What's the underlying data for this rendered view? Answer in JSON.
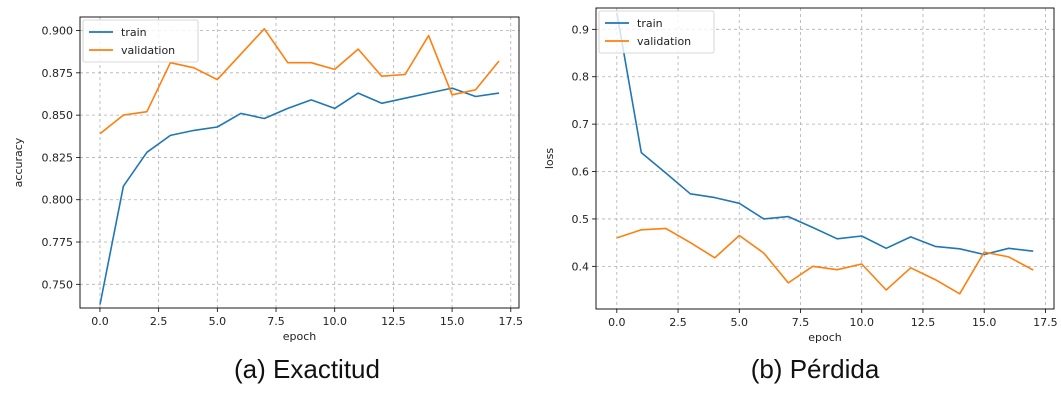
{
  "chart_data": [
    {
      "type": "line",
      "caption": "(a) Exactitud",
      "xlabel": "epoch",
      "ylabel": "accuracy",
      "xlim": [
        -0.85,
        17.85
      ],
      "ylim": [
        0.736,
        0.908
      ],
      "xticks": [
        "0.0",
        "2.5",
        "5.0",
        "7.5",
        "10.0",
        "12.5",
        "15.0",
        "17.5"
      ],
      "yticks": [
        "0.750",
        "0.775",
        "0.800",
        "0.825",
        "0.850",
        "0.875",
        "0.900"
      ],
      "grid": true,
      "legend": "top-left",
      "x": [
        0,
        1,
        2,
        3,
        4,
        5,
        6,
        7,
        8,
        9,
        10,
        11,
        12,
        13,
        14,
        15,
        16,
        17
      ],
      "series": [
        {
          "name": "train",
          "color": "#1f77b4",
          "values": [
            0.738,
            0.808,
            0.828,
            0.838,
            0.841,
            0.843,
            0.851,
            0.848,
            0.854,
            0.859,
            0.854,
            0.863,
            0.857,
            0.86,
            0.863,
            0.866,
            0.861,
            0.863
          ]
        },
        {
          "name": "validation",
          "color": "#ff7f0e",
          "values": [
            0.839,
            0.85,
            0.852,
            0.881,
            0.878,
            0.871,
            0.886,
            0.901,
            0.881,
            0.881,
            0.877,
            0.889,
            0.873,
            0.874,
            0.897,
            0.862,
            0.865,
            0.882
          ]
        }
      ]
    },
    {
      "type": "line",
      "caption": "(b) Pérdida",
      "xlabel": "epoch",
      "ylabel": "loss",
      "xlim": [
        -0.85,
        17.85
      ],
      "ylim": [
        0.31,
        0.945
      ],
      "xticks": [
        "0.0",
        "2.5",
        "5.0",
        "7.5",
        "10.0",
        "12.5",
        "15.0",
        "17.5"
      ],
      "yticks": [
        "0.4",
        "0.5",
        "0.6",
        "0.7",
        "0.8",
        "0.9"
      ],
      "grid": true,
      "legend": "top-left",
      "x": [
        0,
        1,
        2,
        3,
        4,
        5,
        6,
        7,
        8,
        9,
        10,
        11,
        12,
        13,
        14,
        15,
        16,
        17
      ],
      "series": [
        {
          "name": "train",
          "color": "#1f77b4",
          "values": [
            0.935,
            0.64,
            0.597,
            0.553,
            0.545,
            0.533,
            0.5,
            0.505,
            0.482,
            0.458,
            0.464,
            0.438,
            0.462,
            0.442,
            0.437,
            0.425,
            0.438,
            0.432
          ]
        },
        {
          "name": "validation",
          "color": "#ff7f0e",
          "values": [
            0.46,
            0.477,
            0.48,
            0.45,
            0.418,
            0.465,
            0.428,
            0.365,
            0.4,
            0.393,
            0.405,
            0.35,
            0.397,
            0.372,
            0.342,
            0.43,
            0.42,
            0.392
          ]
        }
      ]
    }
  ]
}
